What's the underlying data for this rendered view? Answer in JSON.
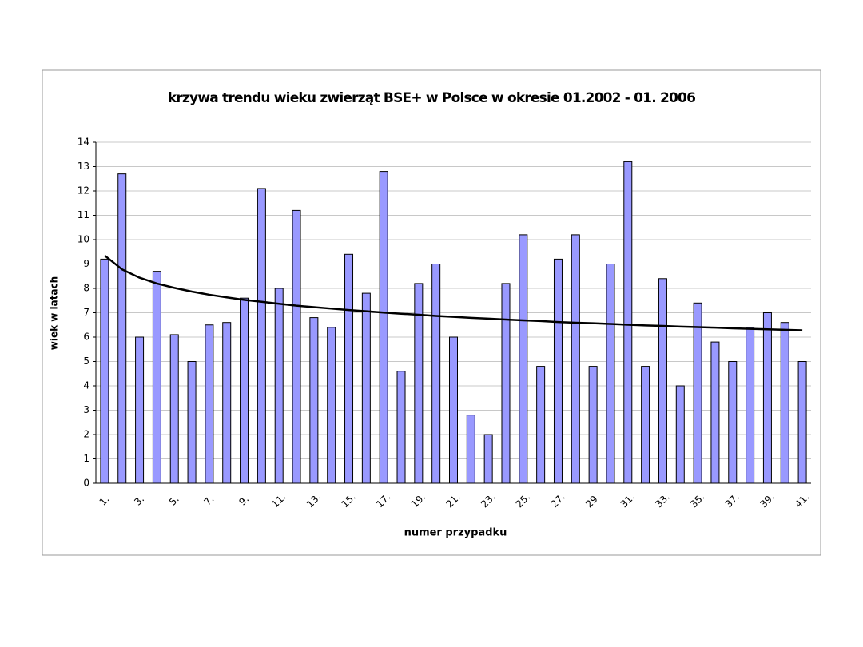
{
  "chart_data": {
    "type": "bar",
    "title": "krzywa trendu wieku zwierząt BSE+ w Polsce w okresie 01.2002 - 01. 2006",
    "x_label": "numer przypadku",
    "y_label": "wiek w latach",
    "categories": [
      "1.",
      null,
      "3.",
      null,
      "5.",
      null,
      "7.",
      null,
      "9.",
      null,
      "11.",
      null,
      "13.",
      null,
      "15.",
      null,
      "17.",
      null,
      "19.",
      null,
      "21.",
      null,
      "23.",
      null,
      "25.",
      null,
      "27.",
      null,
      "29.",
      null,
      "31.",
      null,
      "33.",
      null,
      "35.",
      null,
      "37.",
      null,
      "39.",
      null,
      "41."
    ],
    "series": [
      {
        "color": "#9999ff",
        "values": [
          9.2,
          12.7,
          6.0,
          8.7,
          6.1,
          5.0,
          6.5,
          6.6,
          7.6,
          12.1,
          8.0,
          11.2,
          6.8,
          6.4,
          9.4,
          7.8,
          12.8,
          4.6,
          8.2,
          9.0,
          6.0,
          2.8,
          2.0,
          8.2,
          10.2,
          4.8,
          9.2,
          10.2,
          4.8,
          9.0,
          13.2,
          4.8,
          8.4,
          4.0,
          7.4,
          5.8,
          5.0,
          6.4,
          7.0,
          6.6,
          5.0
        ]
      },
      {
        "type": "line",
        "color": "#000000",
        "values": [
          9.35,
          8.78,
          8.44,
          8.2,
          8.02,
          7.87,
          7.74,
          7.63,
          7.53,
          7.45,
          7.37,
          7.29,
          7.23,
          7.17,
          7.11,
          7.06,
          7.01,
          6.96,
          6.92,
          6.87,
          6.83,
          6.79,
          6.76,
          6.72,
          6.69,
          6.66,
          6.62,
          6.59,
          6.57,
          6.54,
          6.51,
          6.48,
          6.46,
          6.43,
          6.41,
          6.39,
          6.36,
          6.34,
          6.32,
          6.3,
          6.28
        ]
      }
    ],
    "ylim": [
      0,
      14
    ],
    "yticks": [
      0,
      1,
      2,
      3,
      4,
      5,
      6,
      7,
      8,
      9,
      10,
      11,
      12,
      13,
      14
    ],
    "grid": true
  }
}
